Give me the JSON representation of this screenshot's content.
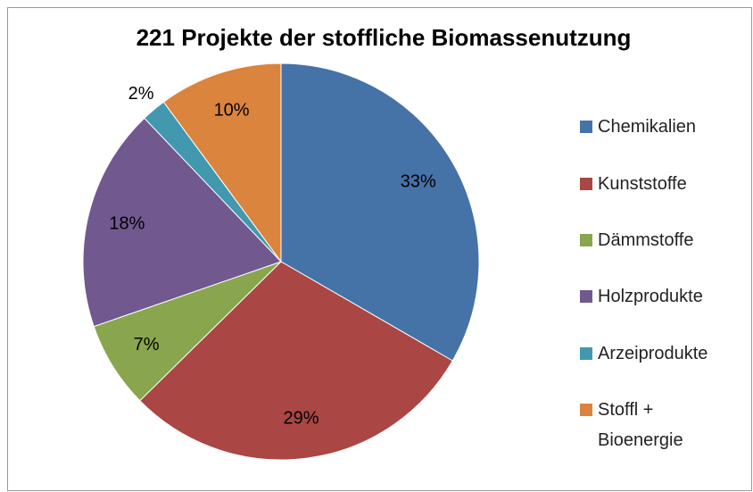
{
  "chart_data": {
    "type": "pie",
    "title": "221 Projekte der stoffliche Biomassenutzung",
    "categories": [
      "Chemikalien",
      "Kunststoffe",
      "Dämmstoffe",
      "Holzprodukte",
      "Arzeiprodukte",
      "Stoffl + Bioenergie"
    ],
    "values": [
      33,
      29,
      7,
      18,
      2,
      10
    ],
    "value_labels": [
      "33%",
      "29%",
      "7%",
      "18%",
      "2%",
      "10%"
    ],
    "colors": [
      "#4572a7",
      "#aa4643",
      "#89a54e",
      "#71588f",
      "#4198af",
      "#db843d"
    ],
    "legend": "right"
  }
}
